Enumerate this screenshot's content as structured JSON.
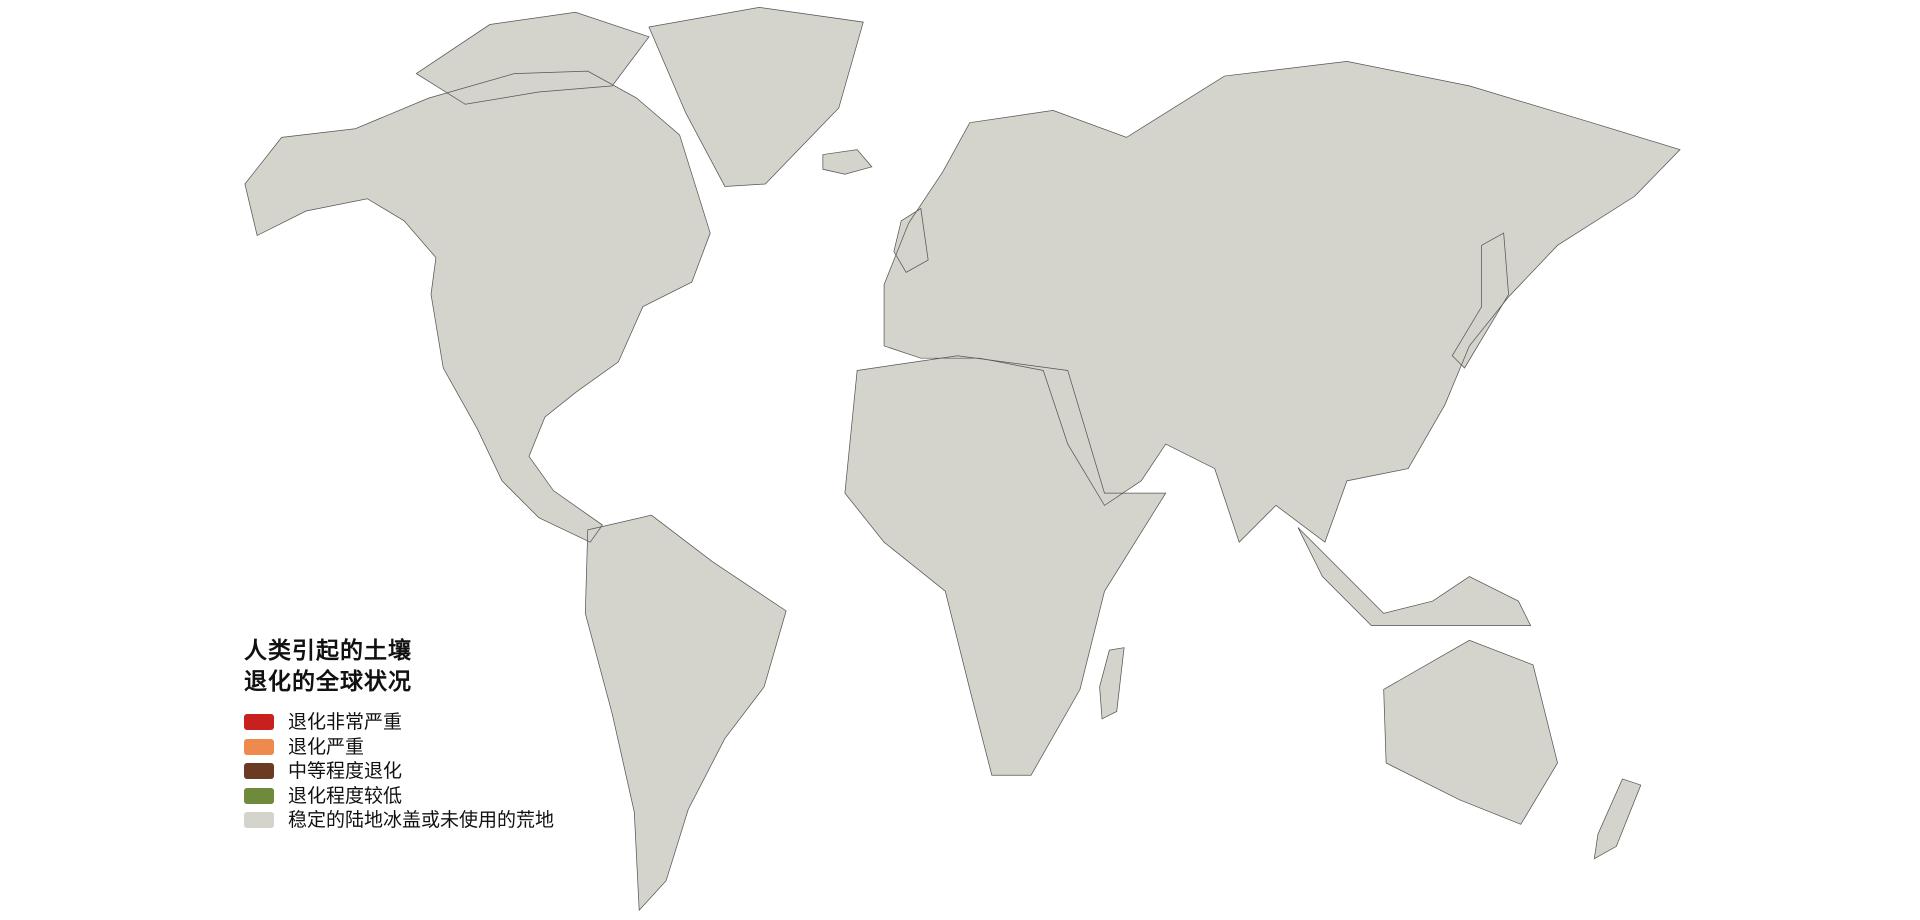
{
  "legend": {
    "title_line1": "人类引起的土壤",
    "title_line2": "退化的全球状况",
    "items": [
      {
        "label": "退化非常严重",
        "color": "#c8201e"
      },
      {
        "label": "退化严重",
        "color": "#ee8a4e"
      },
      {
        "label": "中等程度退化",
        "color": "#6b3a22"
      },
      {
        "label": "退化程度较低",
        "color": "#6e8a3a"
      },
      {
        "label": "稳定的陆地冰盖或未使用的荒地",
        "color": "#d4d4cc"
      }
    ]
  },
  "colors": {
    "background": "#ffffff",
    "stable_land": "#d4d4cc",
    "borders": "#555555"
  }
}
